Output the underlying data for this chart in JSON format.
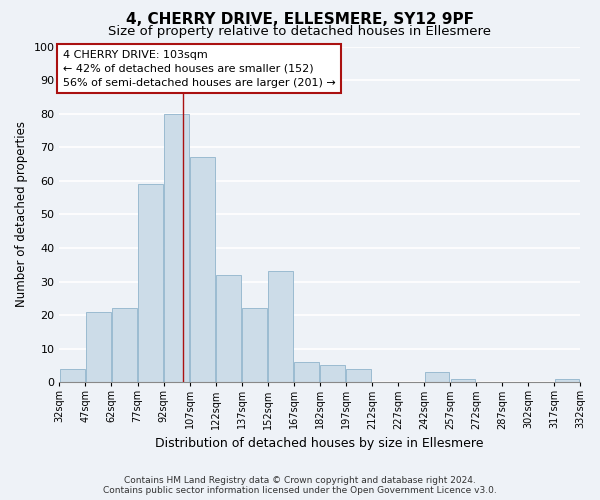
{
  "title": "4, CHERRY DRIVE, ELLESMERE, SY12 9PF",
  "subtitle": "Size of property relative to detached houses in Ellesmere",
  "xlabel": "Distribution of detached houses by size in Ellesmere",
  "ylabel": "Number of detached properties",
  "bar_edges": [
    32,
    47,
    62,
    77,
    92,
    107,
    122,
    137,
    152,
    167,
    182,
    197,
    212,
    227,
    242,
    257,
    272,
    287,
    302,
    317,
    332
  ],
  "bar_heights": [
    4,
    21,
    22,
    59,
    80,
    67,
    32,
    22,
    33,
    6,
    5,
    4,
    0,
    0,
    3,
    1,
    0,
    0,
    0,
    1
  ],
  "bar_color": "#ccdce8",
  "bar_edgecolor": "#90b4cc",
  "vline_x": 103,
  "vline_color": "#aa1111",
  "ylim": [
    0,
    100
  ],
  "annotation_text": "4 CHERRY DRIVE: 103sqm\n← 42% of detached houses are smaller (152)\n56% of semi-detached houses are larger (201) →",
  "annotation_box_facecolor": "#ffffff",
  "annotation_box_edgecolor": "#aa1111",
  "footer1": "Contains HM Land Registry data © Crown copyright and database right 2024.",
  "footer2": "Contains public sector information licensed under the Open Government Licence v3.0.",
  "background_color": "#eef2f7",
  "plot_bg_color": "#eef2f7",
  "grid_color": "#ffffff",
  "title_fontsize": 11,
  "subtitle_fontsize": 9.5,
  "xlabel_fontsize": 9,
  "ylabel_fontsize": 8.5,
  "tick_labels": [
    "32sqm",
    "47sqm",
    "62sqm",
    "77sqm",
    "92sqm",
    "107sqm",
    "122sqm",
    "137sqm",
    "152sqm",
    "167sqm",
    "182sqm",
    "197sqm",
    "212sqm",
    "227sqm",
    "242sqm",
    "257sqm",
    "272sqm",
    "287sqm",
    "302sqm",
    "317sqm",
    "332sqm"
  ]
}
